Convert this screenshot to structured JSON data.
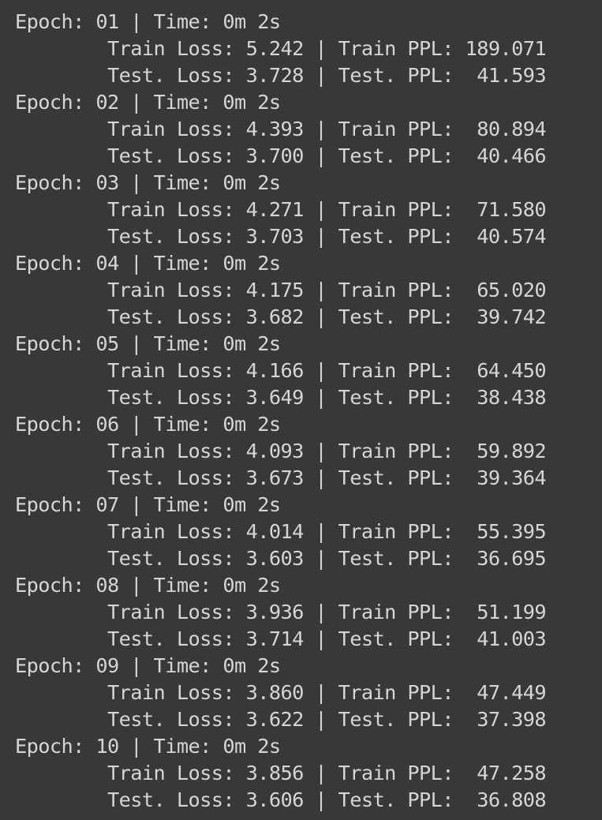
{
  "output": {
    "lines": [
      "Epoch: 01 | Time: 0m 2s",
      "        Train Loss: 5.242 | Train PPL: 189.071",
      "        Test. Loss: 3.728 | Test. PPL:  41.593",
      "Epoch: 02 | Time: 0m 2s",
      "        Train Loss: 4.393 | Train PPL:  80.894",
      "        Test. Loss: 3.700 | Test. PPL:  40.466",
      "Epoch: 03 | Time: 0m 2s",
      "        Train Loss: 4.271 | Train PPL:  71.580",
      "        Test. Loss: 3.703 | Test. PPL:  40.574",
      "Epoch: 04 | Time: 0m 2s",
      "        Train Loss: 4.175 | Train PPL:  65.020",
      "        Test. Loss: 3.682 | Test. PPL:  39.742",
      "Epoch: 05 | Time: 0m 2s",
      "        Train Loss: 4.166 | Train PPL:  64.450",
      "        Test. Loss: 3.649 | Test. PPL:  38.438",
      "Epoch: 06 | Time: 0m 2s",
      "        Train Loss: 4.093 | Train PPL:  59.892",
      "        Test. Loss: 3.673 | Test. PPL:  39.364",
      "Epoch: 07 | Time: 0m 2s",
      "        Train Loss: 4.014 | Train PPL:  55.395",
      "        Test. Loss: 3.603 | Test. PPL:  36.695",
      "Epoch: 08 | Time: 0m 2s",
      "        Train Loss: 3.936 | Train PPL:  51.199",
      "        Test. Loss: 3.714 | Test. PPL:  41.003",
      "Epoch: 09 | Time: 0m 2s",
      "        Train Loss: 3.860 | Train PPL:  47.449",
      "        Test. Loss: 3.622 | Test. PPL:  37.398",
      "Epoch: 10 | Time: 0m 2s",
      "        Train Loss: 3.856 | Train PPL:  47.258",
      "        Test. Loss: 3.606 | Test. PPL:  36.808"
    ]
  },
  "colors": {
    "background": "#383838",
    "text": "#d5d5d5"
  }
}
